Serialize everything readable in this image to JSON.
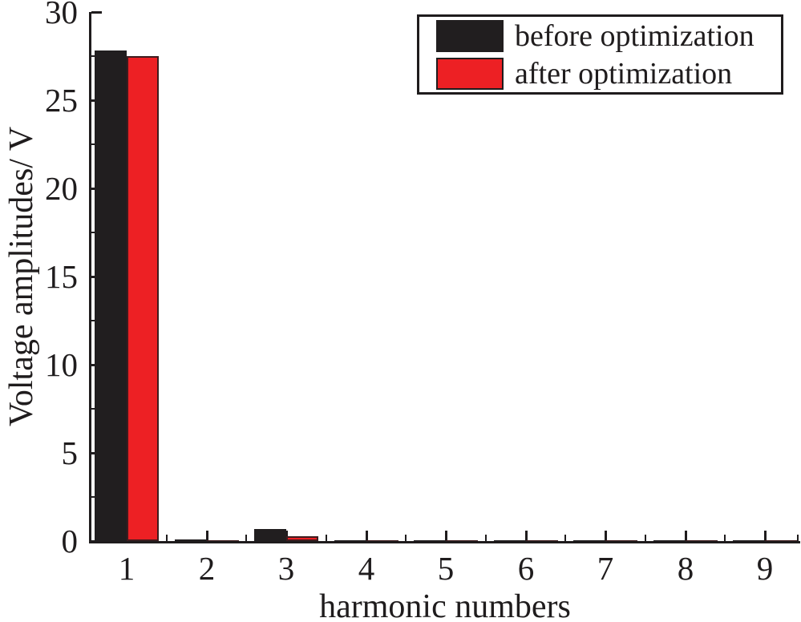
{
  "figure": {
    "background": "#ffffff",
    "axis_color": "#1f1c1d"
  },
  "chart_data": {
    "type": "bar",
    "title": "",
    "xlabel": "harmonic numbers",
    "ylabel": "Voltage amplitudes/ V",
    "categories": [
      "1",
      "2",
      "3",
      "4",
      "5",
      "6",
      "7",
      "8",
      "9"
    ],
    "series": [
      {
        "name": "before optimization",
        "color": "#211e1f",
        "values": [
          27.8,
          0.1,
          0.7,
          0.03,
          0.03,
          0.03,
          0.03,
          0.03,
          0.03
        ]
      },
      {
        "name": "after optimization",
        "color": "#ed2024",
        "values": [
          27.5,
          0.06,
          0.28,
          0.03,
          0.03,
          0.03,
          0.03,
          0.03,
          0.03
        ]
      }
    ],
    "ylim": [
      0,
      30
    ],
    "y_major_ticks": [
      0,
      5,
      10,
      15,
      20,
      25,
      30
    ],
    "y_minor_ticks": [
      2.5,
      7.5,
      12.5,
      17.5,
      22.5,
      27.5
    ],
    "x_minor_ticks": [
      1.5,
      2.5,
      3.5,
      4.5,
      5.5,
      6.5,
      7.5,
      8.5,
      9.42
    ],
    "bar_width_units": 0.4,
    "grid": false,
    "legend_position": "top-right",
    "tick_direction": "in"
  }
}
